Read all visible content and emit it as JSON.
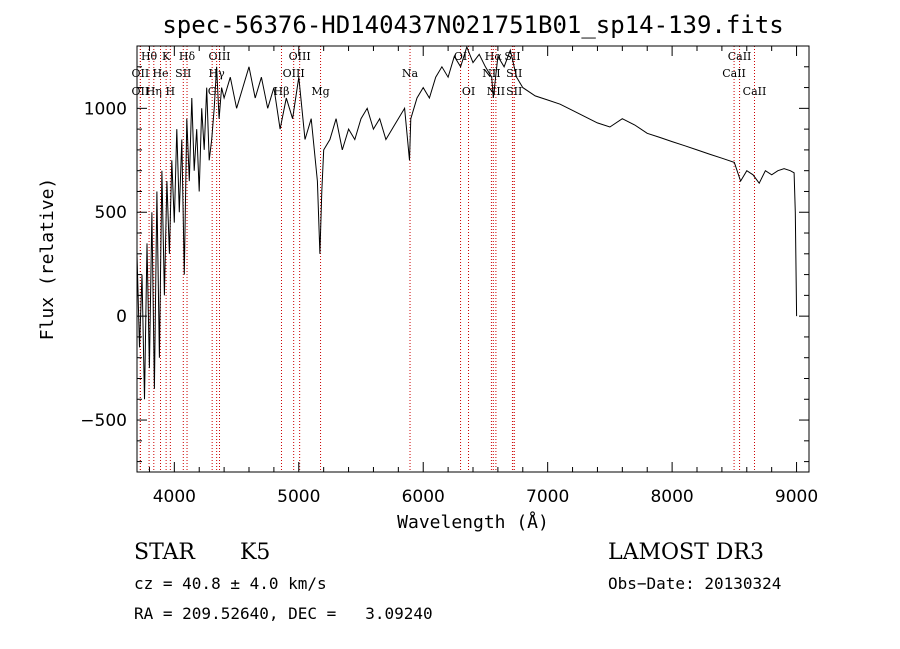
{
  "chart_data": {
    "type": "line",
    "title": "spec-56376-HD140437N021751B01_sp14-139.fits",
    "xlabel": "Wavelength (Å)",
    "ylabel": "Flux (relative)",
    "xlim": [
      3700,
      9100
    ],
    "ylim": [
      -750,
      1300
    ],
    "xticks": [
      4000,
      5000,
      6000,
      7000,
      8000,
      9000
    ],
    "yticks": [
      -500,
      0,
      500,
      1000
    ],
    "xtick_labels": [
      "4000",
      "5000",
      "6000",
      "7000",
      "8000",
      "9000"
    ],
    "ytick_labels": [
      "−500",
      "0",
      "500",
      "1000"
    ],
    "series": [
      {
        "name": "flux",
        "color": "#000000",
        "x": [
          3700,
          3720,
          3740,
          3760,
          3780,
          3800,
          3820,
          3840,
          3860,
          3880,
          3900,
          3920,
          3940,
          3960,
          3980,
          4000,
          4020,
          4040,
          4060,
          4080,
          4100,
          4120,
          4140,
          4160,
          4180,
          4200,
          4220,
          4240,
          4260,
          4280,
          4300,
          4320,
          4340,
          4360,
          4380,
          4400,
          4450,
          4500,
          4550,
          4600,
          4650,
          4700,
          4750,
          4800,
          4850,
          4900,
          4950,
          5000,
          5050,
          5100,
          5150,
          5170,
          5185,
          5200,
          5250,
          5300,
          5350,
          5400,
          5450,
          5500,
          5550,
          5600,
          5650,
          5700,
          5750,
          5800,
          5850,
          5890,
          5900,
          5950,
          6000,
          6050,
          6100,
          6150,
          6200,
          6250,
          6300,
          6350,
          6400,
          6450,
          6500,
          6550,
          6563,
          6600,
          6650,
          6700,
          6750,
          6800,
          6900,
          7000,
          7100,
          7200,
          7300,
          7400,
          7500,
          7600,
          7700,
          7800,
          7900,
          8000,
          8100,
          8200,
          8300,
          8400,
          8500,
          8550,
          8600,
          8650,
          8700,
          8750,
          8800,
          8850,
          8900,
          8950,
          8980,
          8990,
          9000
        ],
        "y": [
          300,
          -150,
          200,
          -400,
          350,
          -250,
          500,
          -350,
          600,
          -200,
          700,
          100,
          650,
          300,
          750,
          450,
          900,
          500,
          850,
          200,
          950,
          650,
          1050,
          700,
          900,
          600,
          1000,
          800,
          1100,
          750,
          850,
          1000,
          1200,
          950,
          1100,
          1050,
          1150,
          1000,
          1100,
          1200,
          1050,
          1150,
          1000,
          1100,
          900,
          1050,
          950,
          1150,
          850,
          950,
          650,
          300,
          600,
          800,
          850,
          950,
          800,
          900,
          850,
          950,
          1000,
          900,
          950,
          850,
          900,
          950,
          1000,
          750,
          950,
          1050,
          1100,
          1050,
          1150,
          1200,
          1150,
          1250,
          1200,
          1300,
          1220,
          1260,
          1200,
          1150,
          1050,
          1250,
          1200,
          1280,
          1150,
          1100,
          1060,
          1040,
          1020,
          990,
          960,
          930,
          910,
          950,
          920,
          880,
          860,
          840,
          820,
          800,
          780,
          760,
          740,
          650,
          700,
          680,
          640,
          700,
          680,
          700,
          710,
          700,
          690,
          500,
          0
        ]
      }
    ],
    "line_markers": [
      {
        "label": "Hθ",
        "x": 3797,
        "row": 0
      },
      {
        "label": "OII",
        "x": 3727,
        "row": 1
      },
      {
        "label": "OII",
        "x": 3727,
        "row": 2
      },
      {
        "label": "Hη",
        "x": 3835,
        "row": 2
      },
      {
        "label": "He",
        "x": 3889,
        "row": 1
      },
      {
        "label": "K",
        "x": 3934,
        "row": 0
      },
      {
        "label": "H",
        "x": 3968,
        "row": 2
      },
      {
        "label": "SII",
        "x": 4072,
        "row": 1
      },
      {
        "label": "Hδ",
        "x": 4102,
        "row": 0
      },
      {
        "label": "OIII",
        "x": 4363,
        "row": 0
      },
      {
        "label": "Hγ",
        "x": 4340,
        "row": 1
      },
      {
        "label": "G",
        "x": 4304,
        "row": 2
      },
      {
        "label": "Hβ",
        "x": 4861,
        "row": 2
      },
      {
        "label": "OIII",
        "x": 5007,
        "row": 0
      },
      {
        "label": "OIII",
        "x": 4959,
        "row": 1
      },
      {
        "label": "Mg",
        "x": 5175,
        "row": 2
      },
      {
        "label": "Na",
        "x": 5894,
        "row": 1
      },
      {
        "label": "OI",
        "x": 6300,
        "row": 0
      },
      {
        "label": "OI",
        "x": 6364,
        "row": 2
      },
      {
        "label": "Hα",
        "x": 6563,
        "row": 0
      },
      {
        "label": "NII",
        "x": 6548,
        "row": 1
      },
      {
        "label": "NII",
        "x": 6584,
        "row": 2
      },
      {
        "label": "SII",
        "x": 6717,
        "row": 0
      },
      {
        "label": "SII",
        "x": 6731,
        "row": 1
      },
      {
        "label": "SII",
        "x": 6731,
        "row": 2
      },
      {
        "label": "CaII",
        "x": 8542,
        "row": 0
      },
      {
        "label": "CaII",
        "x": 8498,
        "row": 1
      },
      {
        "label": "CaII",
        "x": 8662,
        "row": 2
      }
    ]
  },
  "info": {
    "object_class": "STAR",
    "subclass": "K5",
    "survey": "LAMOST DR3",
    "redshift_line": "cz = 40.8 ± 4.0 km/s",
    "obs_date_line": "Obs−Date: 20130324",
    "coords_line": "RA = 209.52640, DEC =   3.09240"
  },
  "colors": {
    "spectrum": "#000000",
    "marker_line": "#cc0000",
    "background": "#ffffff"
  }
}
